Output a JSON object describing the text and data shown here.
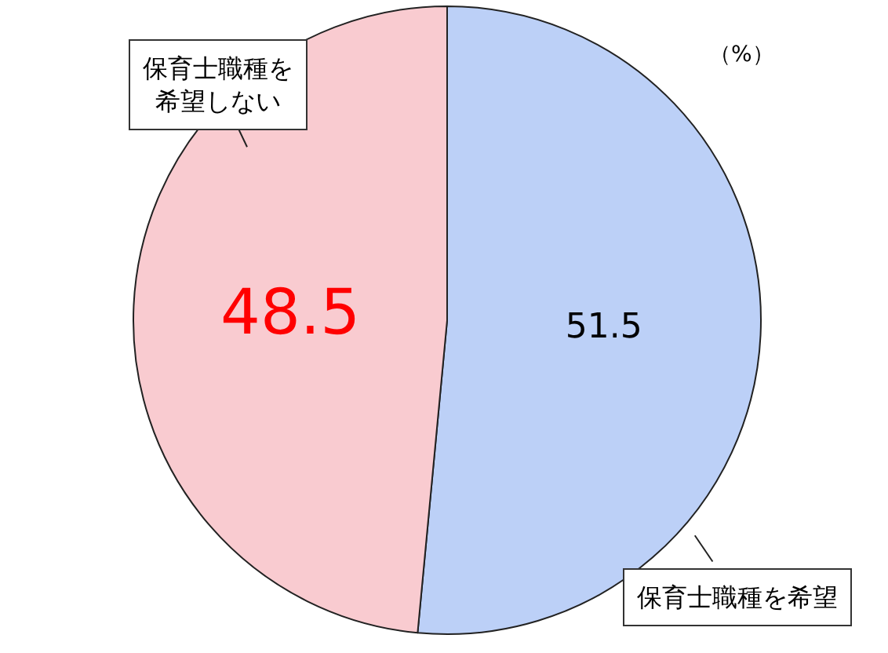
{
  "chart_data": {
    "type": "pie",
    "categories": [
      "保育士職種を希望",
      "保育士職種を希望しない"
    ],
    "values": [
      51.5,
      48.5
    ],
    "colors": [
      "#bcd0f7",
      "#f9cbd0"
    ],
    "data_labels": true,
    "legend": false,
    "annotations": [
      "（%）"
    ]
  }
}
